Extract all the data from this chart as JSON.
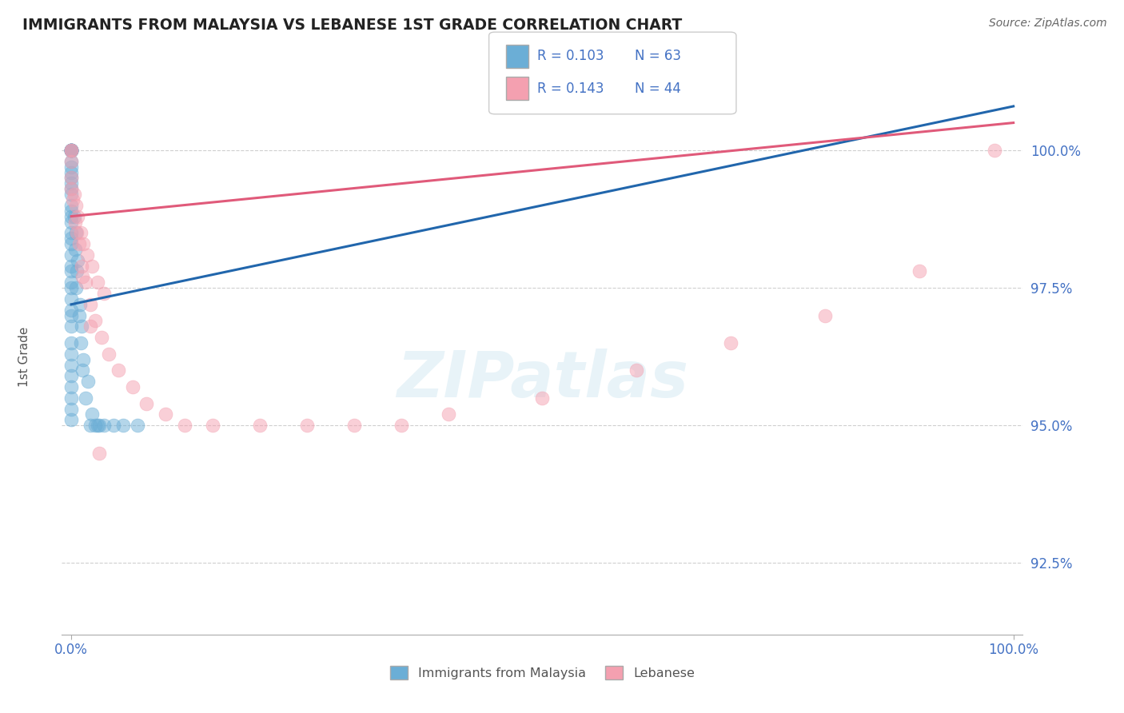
{
  "title": "IMMIGRANTS FROM MALAYSIA VS LEBANESE 1ST GRADE CORRELATION CHART",
  "source": "Source: ZipAtlas.com",
  "ylabel": "1st Grade",
  "ytick_labels": [
    "92.5%",
    "95.0%",
    "97.5%",
    "100.0%"
  ],
  "ytick_values": [
    92.5,
    95.0,
    97.5,
    100.0
  ],
  "ymin": 91.2,
  "ymax": 101.5,
  "xmin": -1.0,
  "xmax": 101.0,
  "R_blue": "0.103",
  "N_blue": "63",
  "R_pink": "0.143",
  "N_pink": "44",
  "blue_color": "#6baed6",
  "pink_color": "#f4a0b0",
  "blue_line_color": "#2166ac",
  "pink_line_color": "#e05a7a",
  "legend_blue_label": "Immigrants from Malaysia",
  "legend_pink_label": "Lebanese",
  "watermark": "ZIPatlas",
  "blue_scatter_x": [
    0.0,
    0.0,
    0.0,
    0.0,
    0.0,
    0.0,
    0.0,
    0.0,
    0.0,
    0.0,
    0.0,
    0.0,
    0.0,
    0.0,
    0.0,
    0.0,
    0.0,
    0.0,
    0.0,
    0.0,
    0.0,
    0.0,
    0.0,
    0.0,
    0.0,
    0.0,
    0.0,
    0.0,
    0.0,
    0.0,
    0.0,
    0.0,
    0.0,
    0.0,
    0.0,
    0.0,
    0.0,
    0.0,
    0.0,
    0.0,
    0.5,
    0.5,
    0.7,
    0.8,
    1.0,
    1.2,
    1.5,
    2.0,
    2.5,
    3.0,
    0.3,
    0.4,
    0.6,
    0.9,
    1.1,
    1.3,
    1.8,
    2.2,
    2.8,
    3.5,
    4.5,
    5.5,
    7.0
  ],
  "blue_scatter_y": [
    100.0,
    100.0,
    100.0,
    100.0,
    100.0,
    100.0,
    100.0,
    100.0,
    100.0,
    99.8,
    99.7,
    99.6,
    99.5,
    99.4,
    99.3,
    99.2,
    99.0,
    98.9,
    98.8,
    98.7,
    98.5,
    98.4,
    98.3,
    98.1,
    97.9,
    97.8,
    97.6,
    97.5,
    97.3,
    97.1,
    97.0,
    96.8,
    96.5,
    96.3,
    96.1,
    95.9,
    95.7,
    95.5,
    95.3,
    95.1,
    98.5,
    97.5,
    98.0,
    97.0,
    96.5,
    96.0,
    95.5,
    95.0,
    95.0,
    95.0,
    98.8,
    98.2,
    97.8,
    97.2,
    96.8,
    96.2,
    95.8,
    95.2,
    95.0,
    95.0,
    95.0,
    95.0,
    95.0
  ],
  "pink_scatter_x": [
    0.0,
    0.0,
    0.0,
    0.0,
    0.0,
    0.3,
    0.5,
    0.7,
    1.0,
    1.3,
    1.7,
    2.2,
    2.8,
    3.5,
    0.2,
    0.4,
    0.8,
    1.1,
    1.5,
    2.0,
    2.5,
    3.2,
    4.0,
    5.0,
    6.5,
    8.0,
    10.0,
    12.0,
    15.0,
    20.0,
    25.0,
    30.0,
    35.0,
    40.0,
    50.0,
    60.0,
    70.0,
    80.0,
    90.0,
    98.0,
    0.6,
    1.2,
    2.0,
    3.0
  ],
  "pink_scatter_y": [
    100.0,
    100.0,
    99.8,
    99.5,
    99.3,
    99.2,
    99.0,
    98.8,
    98.5,
    98.3,
    98.1,
    97.9,
    97.6,
    97.4,
    99.1,
    98.7,
    98.3,
    97.9,
    97.6,
    97.2,
    96.9,
    96.6,
    96.3,
    96.0,
    95.7,
    95.4,
    95.2,
    95.0,
    95.0,
    95.0,
    95.0,
    95.0,
    95.0,
    95.2,
    95.5,
    96.0,
    96.5,
    97.0,
    97.8,
    100.0,
    98.5,
    97.7,
    96.8,
    94.5
  ],
  "blue_line_x0": 0.0,
  "blue_line_y0": 97.2,
  "blue_line_x1": 100.0,
  "blue_line_y1": 100.8,
  "pink_line_x0": 0.0,
  "pink_line_y0": 98.8,
  "pink_line_x1": 100.0,
  "pink_line_y1": 100.5
}
